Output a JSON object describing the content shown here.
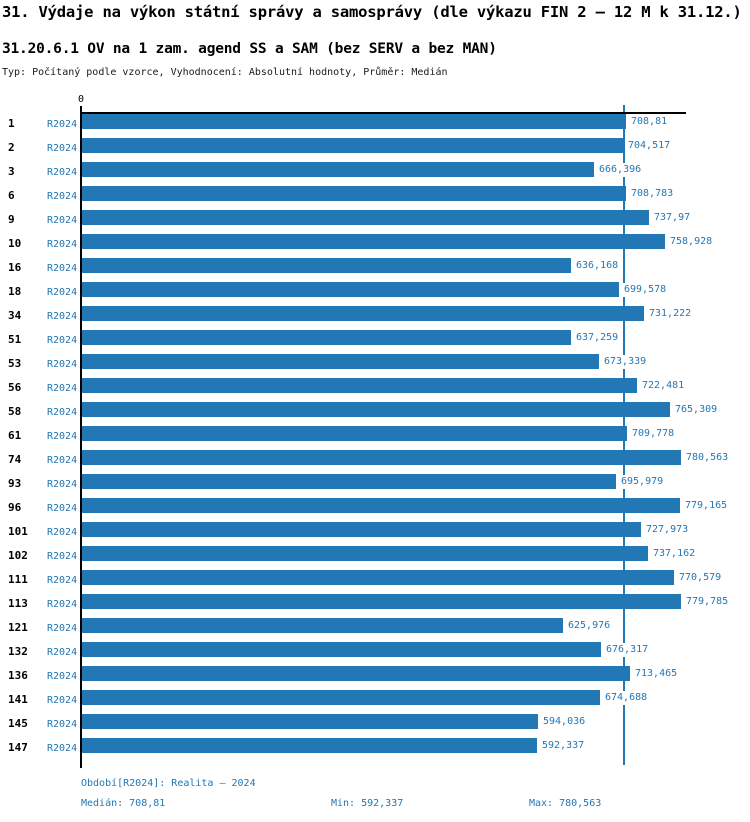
{
  "colors": {
    "accent": "#2277b5",
    "bar": "#2277b5",
    "axis": "#000000"
  },
  "header": {
    "title": "31. Výdaje na výkon státní správy a samosprávy (dle výkazu FIN 2 – 12 M k 31.12.)",
    "subtitle": "31.20.6.1 OV na 1 zam. agend SS a SAM (bez SERV a bez MAN)",
    "meta": "Typ: Počítaný podle vzorce, Vyhodnocení: Absolutní hodnoty, Průměr: Medián"
  },
  "chart_data": {
    "type": "bar",
    "orientation": "horizontal",
    "title": "31.20.6.1 OV na 1 zam. agend SS a SAM (bez SERV a bez MAN)",
    "series_label": "R2024",
    "axis_origin_label": "0",
    "xlim": [
      0,
      787.8
    ],
    "grid": false,
    "median_value": 708.81,
    "median_reference_line": true,
    "bar_color": "#2277b5",
    "median_line_color": "#2277b5",
    "categories": [
      "1",
      "2",
      "3",
      "6",
      "9",
      "10",
      "16",
      "18",
      "34",
      "51",
      "53",
      "56",
      "58",
      "61",
      "74",
      "93",
      "96",
      "101",
      "102",
      "111",
      "113",
      "121",
      "132",
      "136",
      "141",
      "145",
      "147"
    ],
    "values": [
      708.81,
      704.517,
      666.396,
      708.783,
      737.97,
      758.928,
      636.168,
      699.578,
      731.222,
      637.259,
      673.339,
      722.481,
      765.309,
      709.778,
      780.563,
      695.979,
      779.165,
      727.973,
      737.162,
      770.579,
      779.785,
      625.976,
      676.317,
      713.465,
      674.688,
      594.036,
      592.337
    ],
    "value_labels": [
      "708,81",
      "704,517",
      "666,396",
      "708,783",
      "737,97",
      "758,928",
      "636,168",
      "699,578",
      "731,222",
      "637,259",
      "673,339",
      "722,481",
      "765,309",
      "709,778",
      "780,563",
      "695,979",
      "779,165",
      "727,973",
      "737,162",
      "770,579",
      "779,785",
      "625,976",
      "676,317",
      "713,465",
      "674,688",
      "594,036",
      "592,337"
    ]
  },
  "footer": {
    "period": "Období[R2024]: Realita – 2024",
    "median": "Medián: 708,81",
    "min": "Min: 592,337",
    "max": "Max: 780,563"
  }
}
